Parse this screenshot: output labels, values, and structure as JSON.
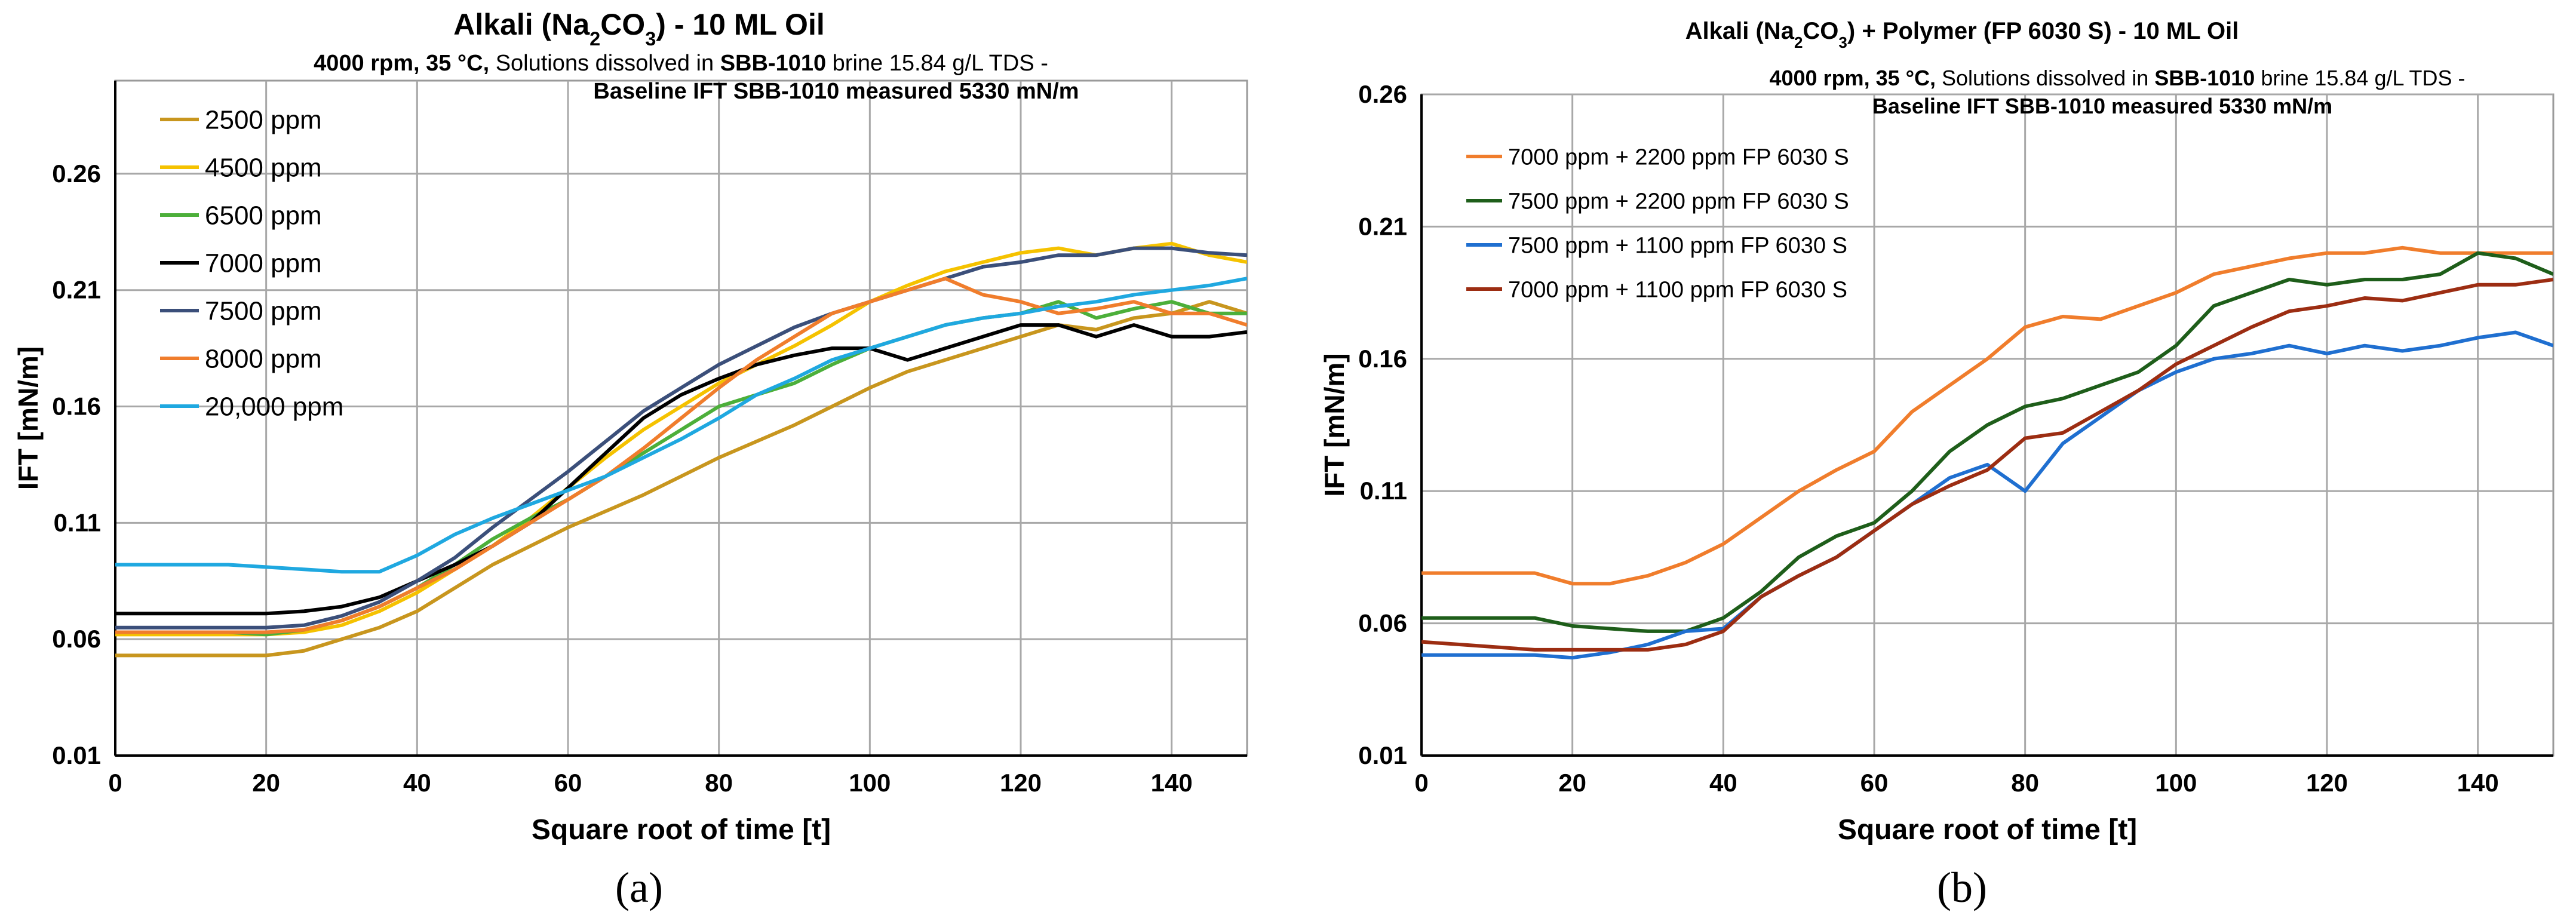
{
  "chart_data": [
    {
      "type": "line",
      "panel_label": "(a)",
      "title_prefix": "Alkali (Na",
      "title_sub": "2",
      "title_mid": "CO",
      "title_sub2": "3",
      "title_suffix": ")  - 10 ML Oil",
      "subtitle_line1": [
        {
          "text": "4000 rpm, 35 °C, ",
          "bold": true
        },
        {
          "text": "Solutions dissolved in ",
          "bold": false
        },
        {
          "text": "SBB-1010",
          "bold": true
        },
        {
          "text": " brine 15.84 g/L TDS -",
          "bold": false
        }
      ],
      "subtitle_line2": "Baseline IFT SBB-1010 measured  5330 mN/m",
      "xlabel": "Square root of time [t]",
      "ylabel": "IFT [mN/m]",
      "xlim": [
        0,
        150
      ],
      "ylim": [
        0.01,
        0.3
      ],
      "x_ticks": [
        0,
        20,
        40,
        60,
        80,
        100,
        120,
        140
      ],
      "x_tick_labels": [
        "0",
        "20",
        "40",
        "60",
        "80",
        "100",
        "120",
        "140"
      ],
      "y_ticks": [
        0.01,
        0.06,
        0.11,
        0.16,
        0.21,
        0.26
      ],
      "y_tick_labels": [
        "0.01",
        "0.06",
        "0.11",
        "0.16",
        "0.21",
        "0.26"
      ],
      "grid": true,
      "legend_position": "top-left",
      "series": [
        {
          "name": "2500 ppm",
          "color": "#c8961e",
          "x": [
            0,
            5,
            10,
            15,
            20,
            25,
            30,
            35,
            40,
            45,
            50,
            55,
            60,
            65,
            70,
            75,
            80,
            85,
            90,
            95,
            100,
            105,
            110,
            115,
            120,
            125,
            130,
            135,
            140,
            145,
            150
          ],
          "y": [
            0.053,
            0.053,
            0.053,
            0.053,
            0.053,
            0.055,
            0.06,
            0.065,
            0.072,
            0.082,
            0.092,
            0.1,
            0.108,
            0.115,
            0.122,
            0.13,
            0.138,
            0.145,
            0.152,
            0.16,
            0.168,
            0.175,
            0.18,
            0.185,
            0.19,
            0.195,
            0.193,
            0.198,
            0.2,
            0.205,
            0.2
          ]
        },
        {
          "name": "4500 ppm",
          "color": "#f5c200",
          "x": [
            0,
            5,
            10,
            15,
            20,
            25,
            30,
            35,
            40,
            45,
            50,
            55,
            60,
            65,
            70,
            75,
            80,
            85,
            90,
            95,
            100,
            105,
            110,
            115,
            120,
            125,
            130,
            135,
            140,
            145,
            150
          ],
          "y": [
            0.062,
            0.062,
            0.062,
            0.062,
            0.062,
            0.063,
            0.066,
            0.072,
            0.08,
            0.09,
            0.1,
            0.112,
            0.125,
            0.138,
            0.15,
            0.16,
            0.17,
            0.178,
            0.186,
            0.195,
            0.205,
            0.212,
            0.218,
            0.222,
            0.226,
            0.228,
            0.225,
            0.228,
            0.23,
            0.225,
            0.222
          ]
        },
        {
          "name": "6500 ppm",
          "color": "#4caf3a",
          "x": [
            0,
            5,
            10,
            15,
            20,
            25,
            30,
            35,
            40,
            45,
            50,
            55,
            60,
            65,
            70,
            75,
            80,
            85,
            90,
            95,
            100,
            105,
            110,
            115,
            120,
            125,
            130,
            135,
            140,
            145,
            150
          ],
          "y": [
            0.063,
            0.063,
            0.063,
            0.063,
            0.062,
            0.064,
            0.068,
            0.074,
            0.082,
            0.092,
            0.103,
            0.112,
            0.12,
            0.13,
            0.14,
            0.15,
            0.16,
            0.165,
            0.17,
            0.178,
            0.185,
            0.19,
            0.195,
            0.198,
            0.2,
            0.205,
            0.198,
            0.202,
            0.205,
            0.2,
            0.2
          ]
        },
        {
          "name": "7000 ppm",
          "color": "#000000",
          "x": [
            0,
            5,
            10,
            15,
            20,
            25,
            30,
            35,
            40,
            45,
            50,
            55,
            60,
            65,
            70,
            75,
            80,
            85,
            90,
            95,
            100,
            105,
            110,
            115,
            120,
            125,
            130,
            135,
            140,
            145,
            150
          ],
          "y": [
            0.071,
            0.071,
            0.071,
            0.071,
            0.071,
            0.072,
            0.074,
            0.078,
            0.085,
            0.092,
            0.1,
            0.11,
            0.125,
            0.14,
            0.155,
            0.165,
            0.172,
            0.178,
            0.182,
            0.185,
            0.185,
            0.18,
            0.185,
            0.19,
            0.195,
            0.195,
            0.19,
            0.195,
            0.19,
            0.19,
            0.192
          ]
        },
        {
          "name": "7500 ppm",
          "color": "#3b4f7a",
          "x": [
            0,
            5,
            10,
            15,
            20,
            25,
            30,
            35,
            40,
            45,
            50,
            55,
            60,
            65,
            70,
            75,
            80,
            85,
            90,
            95,
            100,
            105,
            110,
            115,
            120,
            125,
            130,
            135,
            140,
            145,
            150
          ],
          "y": [
            0.065,
            0.065,
            0.065,
            0.065,
            0.065,
            0.066,
            0.07,
            0.076,
            0.085,
            0.095,
            0.108,
            0.12,
            0.132,
            0.145,
            0.158,
            0.168,
            0.178,
            0.186,
            0.194,
            0.2,
            0.205,
            0.21,
            0.215,
            0.22,
            0.222,
            0.225,
            0.225,
            0.228,
            0.228,
            0.226,
            0.225
          ]
        },
        {
          "name": "8000 ppm",
          "color": "#f07d2c",
          "x": [
            0,
            5,
            10,
            15,
            20,
            25,
            30,
            35,
            40,
            45,
            50,
            55,
            60,
            65,
            70,
            75,
            80,
            85,
            90,
            95,
            100,
            105,
            110,
            115,
            120,
            125,
            130,
            135,
            140,
            145,
            150
          ],
          "y": [
            0.063,
            0.063,
            0.063,
            0.063,
            0.063,
            0.064,
            0.068,
            0.074,
            0.082,
            0.09,
            0.1,
            0.11,
            0.12,
            0.13,
            0.142,
            0.155,
            0.168,
            0.18,
            0.19,
            0.2,
            0.205,
            0.21,
            0.215,
            0.208,
            0.205,
            0.2,
            0.202,
            0.205,
            0.2,
            0.2,
            0.195
          ]
        },
        {
          "name": "20,000 ppm",
          "color": "#1fa8e0",
          "x": [
            0,
            5,
            10,
            15,
            20,
            25,
            30,
            35,
            40,
            45,
            50,
            55,
            60,
            65,
            70,
            75,
            80,
            85,
            90,
            95,
            100,
            105,
            110,
            115,
            120,
            125,
            130,
            135,
            140,
            145,
            150
          ],
          "y": [
            0.092,
            0.092,
            0.092,
            0.092,
            0.091,
            0.09,
            0.089,
            0.089,
            0.096,
            0.105,
            0.112,
            0.118,
            0.124,
            0.13,
            0.138,
            0.146,
            0.155,
            0.165,
            0.172,
            0.18,
            0.185,
            0.19,
            0.195,
            0.198,
            0.2,
            0.203,
            0.205,
            0.208,
            0.21,
            0.212,
            0.215
          ]
        }
      ]
    },
    {
      "type": "line",
      "panel_label": "(b)",
      "title_prefix": "Alkali (Na",
      "title_sub": "2",
      "title_mid": "CO",
      "title_sub2": "3",
      "title_suffix": ") + Polymer (FP 6030 S) - 10 ML Oil",
      "subtitle_line1": [
        {
          "text": "4000 rpm, 35 °C, ",
          "bold": true
        },
        {
          "text": "Solutions dissolved in ",
          "bold": false
        },
        {
          "text": "SBB-1010",
          "bold": true
        },
        {
          "text": " brine 15.84 g/L TDS -",
          "bold": false
        }
      ],
      "subtitle_line2": "Baseline IFT SBB-1010 measured  5330 mN/m",
      "xlabel": "Square root of time [t]",
      "ylabel": "IFT [mN/m]",
      "xlim": [
        0,
        150
      ],
      "ylim": [
        0.01,
        0.26
      ],
      "x_ticks": [
        0,
        20,
        40,
        60,
        80,
        100,
        120,
        140
      ],
      "x_tick_labels": [
        "0",
        "20",
        "40",
        "60",
        "80",
        "100",
        "120",
        "140"
      ],
      "y_ticks": [
        0.01,
        0.06,
        0.11,
        0.16,
        0.21,
        0.26
      ],
      "y_tick_labels": [
        "0.01",
        "0.06",
        "0.11",
        "0.16",
        "0.21",
        "0.26"
      ],
      "grid": true,
      "legend_position": "top-left",
      "series": [
        {
          "name": "7000 ppm + 2200 ppm FP 6030 S",
          "color": "#f07d2c",
          "x": [
            0,
            5,
            10,
            15,
            20,
            25,
            30,
            35,
            40,
            45,
            50,
            55,
            60,
            65,
            70,
            75,
            80,
            85,
            90,
            95,
            100,
            105,
            110,
            115,
            120,
            125,
            130,
            135,
            140,
            145,
            150
          ],
          "y": [
            0.079,
            0.079,
            0.079,
            0.079,
            0.075,
            0.075,
            0.078,
            0.083,
            0.09,
            0.1,
            0.11,
            0.118,
            0.125,
            0.14,
            0.15,
            0.16,
            0.172,
            0.176,
            0.175,
            0.18,
            0.185,
            0.192,
            0.195,
            0.198,
            0.2,
            0.2,
            0.202,
            0.2,
            0.2,
            0.2,
            0.2
          ]
        },
        {
          "name": "7500 ppm + 2200 ppm FP 6030 S",
          "color": "#1e5e1a",
          "x": [
            0,
            5,
            10,
            15,
            20,
            25,
            30,
            35,
            40,
            45,
            50,
            55,
            60,
            65,
            70,
            75,
            80,
            85,
            90,
            95,
            100,
            105,
            110,
            115,
            120,
            125,
            130,
            135,
            140,
            145,
            150
          ],
          "y": [
            0.062,
            0.062,
            0.062,
            0.062,
            0.059,
            0.058,
            0.057,
            0.057,
            0.062,
            0.072,
            0.085,
            0.093,
            0.098,
            0.11,
            0.125,
            0.135,
            0.142,
            0.145,
            0.15,
            0.155,
            0.165,
            0.18,
            0.185,
            0.19,
            0.188,
            0.19,
            0.19,
            0.192,
            0.2,
            0.198,
            0.192
          ]
        },
        {
          "name": "7500 ppm + 1100 ppm FP 6030 S",
          "color": "#1f6fd0",
          "x": [
            0,
            5,
            10,
            15,
            20,
            25,
            30,
            35,
            40,
            45,
            50,
            55,
            60,
            65,
            70,
            75,
            80,
            85,
            90,
            95,
            100,
            105,
            110,
            115,
            120,
            125,
            130,
            135,
            140,
            145,
            150
          ],
          "y": [
            0.048,
            0.048,
            0.048,
            0.048,
            0.047,
            0.049,
            0.052,
            0.057,
            0.058,
            0.07,
            0.078,
            0.085,
            0.095,
            0.105,
            0.115,
            0.12,
            0.11,
            0.128,
            0.138,
            0.148,
            0.155,
            0.16,
            0.162,
            0.165,
            0.162,
            0.165,
            0.163,
            0.165,
            0.168,
            0.17,
            0.165
          ]
        },
        {
          "name": "7000 ppm + 1100 ppm FP 6030 S",
          "color": "#9c2d12",
          "x": [
            0,
            5,
            10,
            15,
            20,
            25,
            30,
            35,
            40,
            45,
            50,
            55,
            60,
            65,
            70,
            75,
            80,
            85,
            90,
            95,
            100,
            105,
            110,
            115,
            120,
            125,
            130,
            135,
            140,
            145,
            150
          ],
          "y": [
            0.053,
            0.052,
            0.051,
            0.05,
            0.05,
            0.05,
            0.05,
            0.052,
            0.057,
            0.07,
            0.078,
            0.085,
            0.095,
            0.105,
            0.112,
            0.118,
            0.13,
            0.132,
            0.14,
            0.148,
            0.158,
            0.165,
            0.172,
            0.178,
            0.18,
            0.183,
            0.182,
            0.185,
            0.188,
            0.188,
            0.19
          ]
        }
      ]
    }
  ]
}
